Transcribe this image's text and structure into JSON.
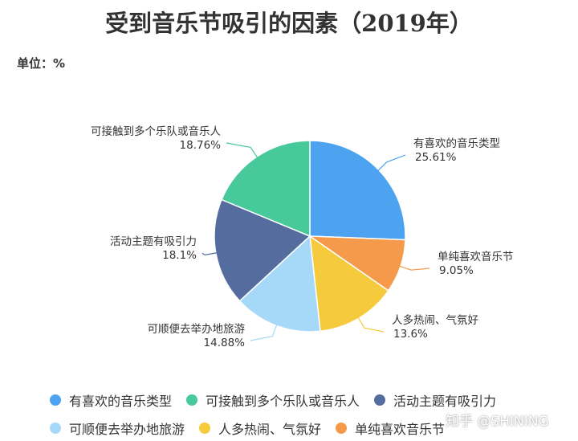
{
  "title": "受到音乐节吸引的因素（2019年）",
  "unit_label": "单位：%",
  "watermark": "知乎 @SHINING",
  "chart_data": {
    "type": "pie",
    "unit": "%",
    "slices": [
      {
        "name": "有喜欢的音乐类型",
        "value": 25.61,
        "label": "25.61%",
        "color": "#4da3f0"
      },
      {
        "name": "单纯喜欢音乐节",
        "value": 9.05,
        "label": "9.05%",
        "color": "#f5994a"
      },
      {
        "name": "人多热闹、气氛好",
        "value": 13.6,
        "label": "13.6%",
        "color": "#f5ca3c"
      },
      {
        "name": "可顺便去举办地旅游",
        "value": 14.88,
        "label": "14.88%",
        "color": "#a6d9f7"
      },
      {
        "name": "活动主题有吸引力",
        "value": 18.1,
        "label": "18.1%",
        "color": "#556d9e"
      },
      {
        "name": "可接触到多个乐队或音乐人",
        "value": 18.76,
        "label": "18.76%",
        "color": "#47c99b"
      }
    ],
    "legend": [
      {
        "name": "有喜欢的音乐类型",
        "color": "#4da3f0"
      },
      {
        "name": "可接触到多个乐队或音乐人",
        "color": "#47c99b"
      },
      {
        "name": "活动主题有吸引力",
        "color": "#556d9e"
      },
      {
        "name": "可顺便去举办地旅游",
        "color": "#a6d9f7"
      },
      {
        "name": "人多热闹、气氛好",
        "color": "#f5ca3c"
      },
      {
        "name": "单纯喜欢音乐节",
        "color": "#f5994a"
      }
    ],
    "legend_position": "bottom"
  }
}
